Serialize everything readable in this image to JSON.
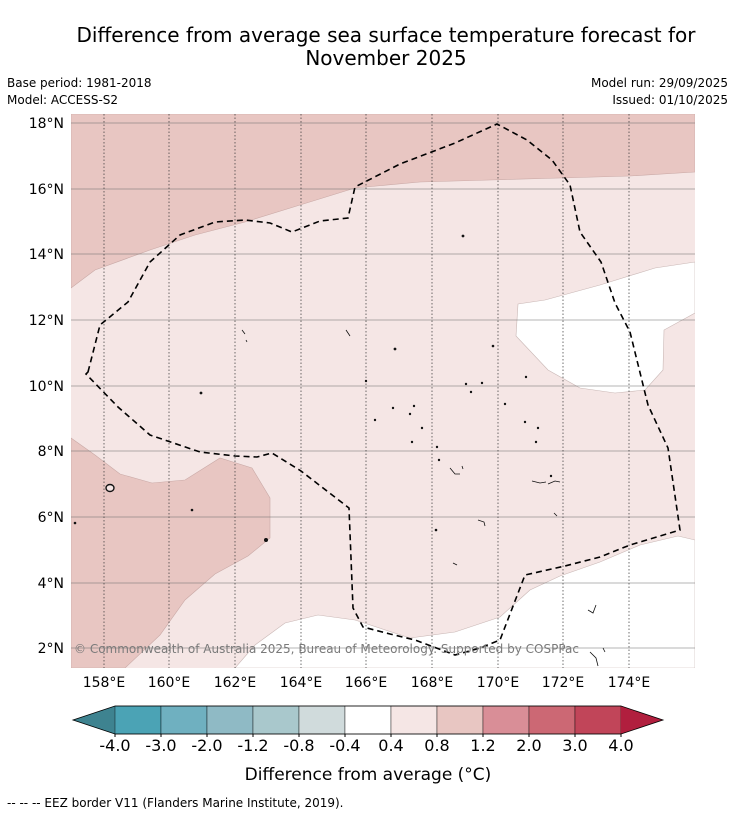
{
  "title_line1": "Difference from average sea surface temperature forecast for",
  "title_line2": "November 2025",
  "base_period": "Base period: 1981-2018",
  "model": "Model: ACCESS-S2",
  "model_run": "Model run: 29/09/2025",
  "issued": "Issued: 01/10/2025",
  "latitude_labels": [
    "18°N",
    "16°N",
    "14°N",
    "12°N",
    "10°N",
    "8°N",
    "6°N",
    "4°N",
    "2°N"
  ],
  "longitude_labels": [
    "158°E",
    "160°E",
    "162°E",
    "164°E",
    "166°E",
    "168°E",
    "170°E",
    "172°E",
    "174°E"
  ],
  "copyright": "© Commonwealth of Australia 2025, Bureau of Meteorology. Supported by COSPPac",
  "colorbar": {
    "ticks": [
      "-4.0",
      "-3.0",
      "-2.0",
      "-1.2",
      "-0.8",
      "-0.4",
      "0.4",
      "0.8",
      "1.2",
      "2.0",
      "3.0",
      "4.0"
    ],
    "colors": [
      "#3e8390",
      "#4ba3b5",
      "#6fb0c0",
      "#8fbac5",
      "#a9c8cc",
      "#d0dbdc",
      "#ffffff",
      "#f5e6e5",
      "#e8c6c2",
      "#d98e97",
      "#cc6874",
      "#c14559",
      "#b11f3e"
    ],
    "label": "Difference from average (°C)"
  },
  "legend_eez": "--  --  -- EEZ border V11 (Flanders Marine Institute, 2019).",
  "fill_colors": {
    "anomaly_0_4_to_0_8": "#f5e6e5",
    "anomaly_0_8_to_1_2": "#e8c6c2",
    "anomaly_neutral": "#ffffff"
  }
}
